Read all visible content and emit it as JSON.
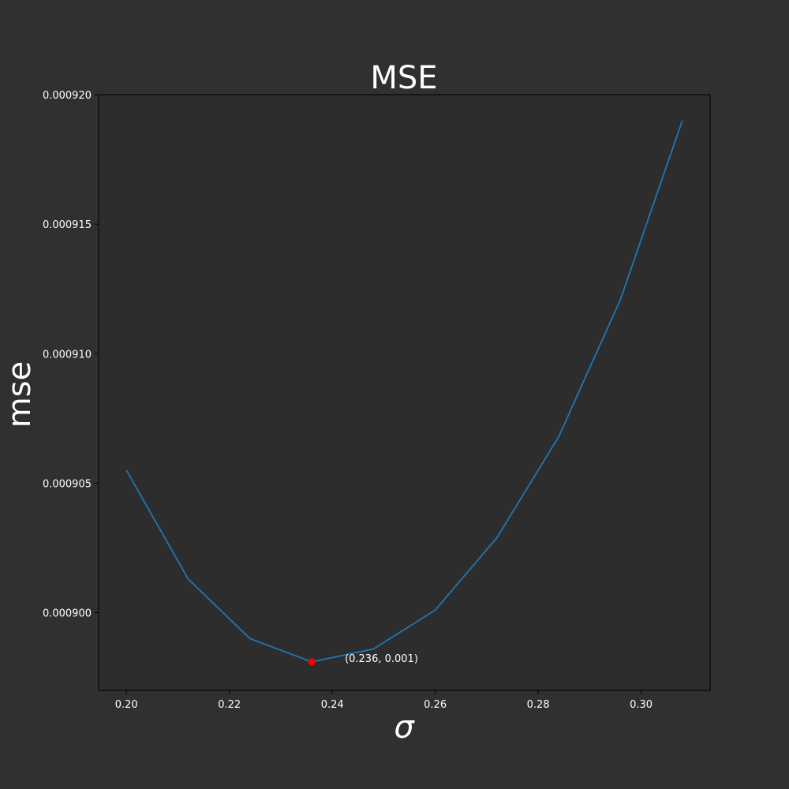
{
  "chart_data": {
    "type": "line",
    "title": "MSE",
    "xlabel": "σ",
    "ylabel": "mse",
    "xlim": [
      0.1946,
      0.3134
    ],
    "ylim": [
      0.000897,
      0.00092
    ],
    "xticks": [
      0.2,
      0.22,
      0.24,
      0.26,
      0.28,
      0.3
    ],
    "xtick_labels": [
      "0.20",
      "0.22",
      "0.24",
      "0.26",
      "0.28",
      "0.30"
    ],
    "yticks": [
      0.0009,
      0.000905,
      0.00091,
      0.000915,
      0.00092
    ],
    "ytick_labels": [
      "0.000900",
      "0.000905",
      "0.000910",
      "0.000915",
      "0.000920"
    ],
    "grid": false,
    "series": [
      {
        "x": [
          0.2,
          0.212,
          0.224,
          0.236,
          0.248,
          0.26,
          0.272,
          0.284,
          0.296,
          0.308
        ],
        "values": [
          0.0009055,
          0.0009013,
          0.000899,
          0.0008981,
          0.0008986,
          0.0009001,
          0.0009029,
          0.0009068,
          0.0009121,
          0.000919
        ],
        "color": "#1f77b4"
      }
    ],
    "marker": {
      "x": 0.236,
      "y": 0.0008981,
      "color": "#ff0000",
      "label": "(0.236, 0.001)"
    },
    "colors": {
      "background": "#303030",
      "plot_background": "#2d2d2d",
      "text": "#ffffff",
      "axes": "#000000"
    }
  }
}
